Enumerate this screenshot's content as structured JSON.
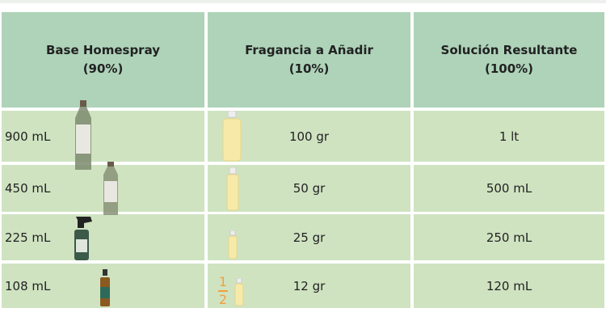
{
  "table": {
    "header": [
      {
        "title": "Base Homespray",
        "subtitle": "(90%)"
      },
      {
        "title": "Fragancia a Añadir",
        "subtitle": "(10%)"
      },
      {
        "title": "Solución Resultante",
        "subtitle": "(100%)"
      }
    ],
    "rows": [
      {
        "base": "900 mL",
        "fragrance": "100 gr",
        "result": "1 lt"
      },
      {
        "base": "450 mL",
        "fragrance": "50 gr",
        "result": "500 mL"
      },
      {
        "base": "225 mL",
        "fragrance": "25 gr",
        "result": "250 mL"
      },
      {
        "base": "108 mL",
        "fragrance": "12 gr",
        "result": "120 mL",
        "fragrance_note": [
          "1",
          "2"
        ]
      }
    ]
  }
}
